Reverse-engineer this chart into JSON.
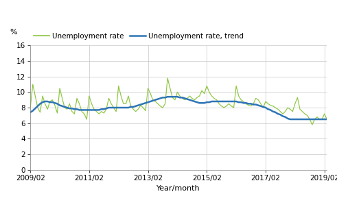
{
  "ylabel": "%",
  "xlabel": "Year/month",
  "legend_unemployment": "Unemployment rate",
  "legend_trend": "Unemployment rate, trend",
  "line_color_unemployment": "#8dc63f",
  "line_color_trend": "#2e75b6",
  "background_color": "#ffffff",
  "grid_color": "#c8c8c8",
  "ylim": [
    0,
    16
  ],
  "yticks": [
    0,
    2,
    4,
    6,
    8,
    10,
    12,
    14,
    16
  ],
  "xtick_labels": [
    "2009/02",
    "2011/02",
    "2013/02",
    "2015/02",
    "2017/02",
    "2019/02"
  ],
  "unemployment_rate": [
    8.0,
    11.0,
    9.5,
    8.0,
    7.4,
    9.5,
    8.5,
    7.8,
    8.8,
    9.0,
    8.3,
    7.3,
    10.5,
    9.2,
    8.0,
    7.8,
    8.5,
    7.5,
    7.2,
    9.2,
    8.5,
    7.5,
    7.2,
    6.5,
    9.5,
    8.5,
    7.8,
    7.5,
    7.2,
    7.5,
    7.3,
    7.8,
    9.2,
    8.5,
    8.0,
    7.5,
    10.8,
    9.5,
    8.5,
    8.5,
    9.5,
    8.2,
    7.8,
    7.5,
    7.8,
    8.3,
    8.0,
    7.6,
    10.5,
    9.8,
    9.0,
    8.8,
    8.5,
    8.2,
    8.0,
    8.5,
    11.8,
    10.5,
    9.3,
    9.0,
    10.0,
    9.5,
    9.2,
    9.0,
    9.2,
    9.5,
    9.2,
    9.0,
    9.3,
    9.5,
    10.2,
    9.8,
    10.8,
    10.0,
    9.5,
    9.2,
    9.0,
    8.5,
    8.2,
    8.0,
    8.2,
    8.5,
    8.2,
    8.0,
    10.8,
    9.5,
    9.0,
    8.8,
    8.5,
    8.3,
    8.2,
    8.5,
    9.2,
    9.0,
    8.5,
    8.0,
    8.8,
    8.5,
    8.3,
    8.2,
    8.0,
    7.8,
    7.5,
    7.2,
    7.5,
    8.0,
    7.8,
    7.5,
    8.5,
    9.3,
    7.8,
    7.5,
    7.2,
    7.0,
    6.5,
    5.8,
    6.5,
    6.8,
    6.5,
    6.5,
    7.2,
    6.5
  ],
  "trend_rate": [
    7.4,
    7.6,
    7.9,
    8.2,
    8.5,
    8.7,
    8.8,
    8.8,
    8.7,
    8.7,
    8.6,
    8.5,
    8.3,
    8.2,
    8.1,
    8.0,
    7.9,
    7.9,
    7.8,
    7.8,
    7.7,
    7.7,
    7.7,
    7.7,
    7.7,
    7.7,
    7.7,
    7.7,
    7.7,
    7.8,
    7.8,
    7.9,
    8.0,
    8.0,
    8.0,
    8.0,
    8.0,
    8.0,
    8.0,
    8.0,
    8.0,
    8.1,
    8.1,
    8.2,
    8.3,
    8.4,
    8.5,
    8.6,
    8.7,
    8.8,
    8.9,
    9.0,
    9.1,
    9.2,
    9.3,
    9.3,
    9.4,
    9.4,
    9.4,
    9.4,
    9.4,
    9.3,
    9.3,
    9.2,
    9.1,
    9.0,
    8.9,
    8.8,
    8.7,
    8.6,
    8.6,
    8.6,
    8.7,
    8.7,
    8.8,
    8.8,
    8.8,
    8.8,
    8.8,
    8.8,
    8.8,
    8.8,
    8.8,
    8.8,
    8.8,
    8.7,
    8.7,
    8.6,
    8.6,
    8.5,
    8.5,
    8.4,
    8.4,
    8.3,
    8.2,
    8.1,
    8.0,
    7.8,
    7.7,
    7.5,
    7.4,
    7.2,
    7.1,
    6.9,
    6.8,
    6.6,
    6.5,
    6.5,
    6.5,
    6.5,
    6.5,
    6.5,
    6.5,
    6.5,
    6.5,
    6.5,
    6.5,
    6.5,
    6.5,
    6.5,
    6.5,
    6.5
  ]
}
